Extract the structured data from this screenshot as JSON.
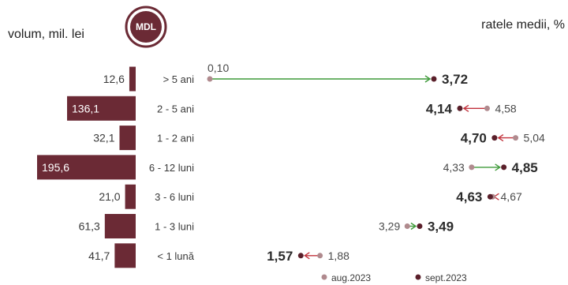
{
  "header": {
    "left_label": "volum, mil. lei",
    "badge": "MDL",
    "right_label": "ratele medii, %"
  },
  "legend": {
    "aug": "aug.2023",
    "sep": "sept.2023"
  },
  "colors": {
    "bar": "#6b2a35",
    "dot_sep": "#5a1f2a",
    "dot_aug": "#b08a8e",
    "arrow_up": "#3f9a3a",
    "arrow_down": "#c2323c",
    "badge_ring": "#6b2a35"
  },
  "chart_data": {
    "type": "bar+dumbbell",
    "categories": [
      "> 5 ani",
      "2 - 5 ani",
      "1 - 2 ani",
      "6 - 12 luni",
      "3 - 6 luni",
      "1 - 3 luni",
      "< 1 lună"
    ],
    "volume": {
      "values": [
        12.6,
        136.1,
        32.1,
        195.6,
        21.0,
        61.3,
        41.7
      ],
      "labels": [
        "12,6",
        "136,1",
        "32,1",
        "195,6",
        "21,0",
        "61,3",
        "41,7"
      ]
    },
    "rates": {
      "aug": [
        0.1,
        4.58,
        5.04,
        4.33,
        4.67,
        3.29,
        1.88
      ],
      "aug_labels": [
        "0,10",
        "4,58",
        "5,04",
        "4,33",
        "4,67",
        "3,29",
        "1,88"
      ],
      "sep": [
        3.72,
        4.14,
        4.7,
        4.85,
        4.63,
        3.49,
        1.57
      ],
      "sep_labels": [
        "3,72",
        "4,14",
        "4,70",
        "4,85",
        "4,63",
        "3,49",
        "1,57"
      ]
    },
    "series": [
      {
        "name": "aug.2023"
      },
      {
        "name": "sept.2023"
      }
    ]
  }
}
